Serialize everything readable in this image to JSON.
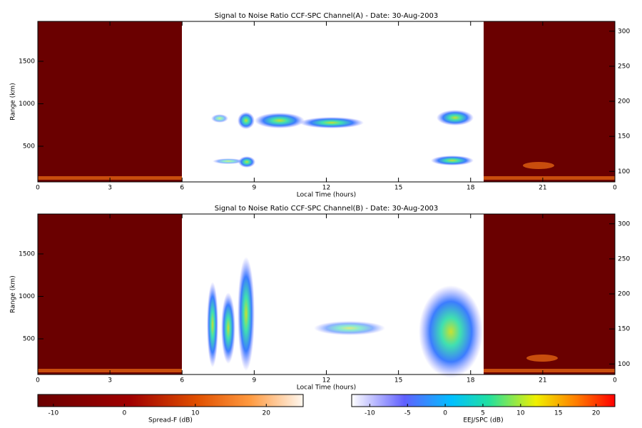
{
  "chart_data": [
    {
      "type": "heatmap",
      "title": "Signal to Noise Ratio CCF-SPC Channel(A) - Date: 30-Aug-2003",
      "x_label": "Local Time (hours)",
      "y_label": "Range (km)",
      "xlim": [
        0,
        24
      ],
      "xticks": [
        0,
        3,
        6,
        9,
        12,
        15,
        18,
        21,
        {
          "value": 24,
          "label": "0"
        }
      ],
      "ylim": [
        80,
        1970
      ],
      "yticks": [
        500,
        1000,
        1500
      ],
      "y2lim": [
        85,
        314
      ],
      "y2ticks": [
        100,
        150,
        200,
        250,
        300
      ]
    },
    {
      "type": "heatmap",
      "title": "Signal to Noise Ratio CCF-SPC Channel(B) - Date: 30-Aug-2003",
      "x_label": "Local Time (hours)",
      "y_label": "Range (km)",
      "xlim": [
        0,
        24
      ],
      "xticks": [
        0,
        3,
        6,
        9,
        12,
        15,
        18,
        21,
        {
          "value": 24,
          "label": "0"
        }
      ],
      "ylim": [
        80,
        1970
      ],
      "yticks": [
        500,
        1000,
        1500
      ],
      "y2lim": [
        85,
        314
      ],
      "y2ticks": [
        100,
        150,
        200,
        250,
        300
      ]
    }
  ],
  "colorbars": [
    {
      "label": "Spread-F (dB)",
      "lim": [
        -12.2,
        25.2
      ],
      "ticks": [
        -10,
        0,
        10,
        20
      ]
    },
    {
      "label": "EEJ/SPC (dB)",
      "lim": [
        -12.4,
        22.5
      ],
      "ticks": [
        -10,
        -5,
        0,
        5,
        10,
        15,
        20
      ]
    }
  ]
}
